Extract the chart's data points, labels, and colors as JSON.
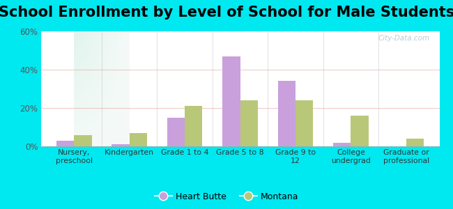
{
  "title": "School Enrollment by Level of School for Male Students",
  "categories": [
    "Nursery,\npreschool",
    "Kindergarten",
    "Grade 1 to 4",
    "Grade 5 to 8",
    "Grade 9 to\n12",
    "College\nundergrad",
    "Graduate or\nprofessional"
  ],
  "heart_butte": [
    3,
    1,
    15,
    47,
    34,
    2,
    0
  ],
  "montana": [
    6,
    7,
    21,
    24,
    24,
    16,
    4
  ],
  "heart_butte_color": "#c9a0dc",
  "montana_color": "#b8c878",
  "background_outer": "#00e8f0",
  "ylim": [
    0,
    60
  ],
  "yticks": [
    0,
    20,
    40,
    60
  ],
  "ytick_labels": [
    "0%",
    "20%",
    "40%",
    "60%"
  ],
  "title_fontsize": 15,
  "legend_labels": [
    "Heart Butte",
    "Montana"
  ],
  "watermark": "City-Data.com",
  "bar_width": 0.32
}
